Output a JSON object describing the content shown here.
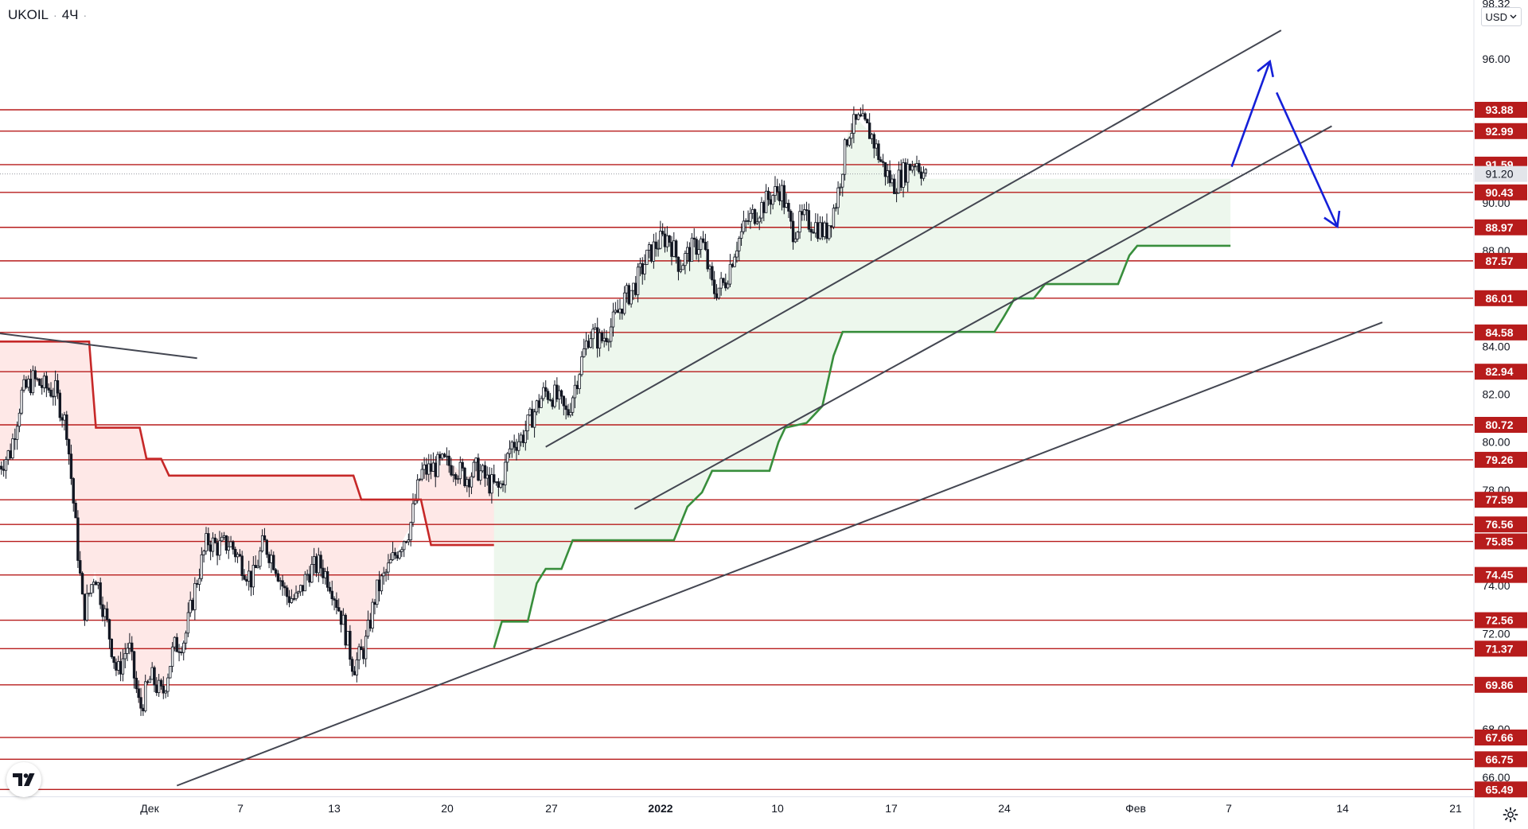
{
  "symbol": "UKOIL",
  "interval": "4Ч",
  "currency": "USD",
  "icons": {
    "currency_dropdown": "chevron-down-icon",
    "logo": "tradingview-logo-icon",
    "settings": "gear-icon"
  },
  "colors": {
    "level_line": "#b71c1c",
    "level_badge": "#b71c1c",
    "candle": "#131722",
    "channel": "#434651",
    "stop_red": "#c62828",
    "stop_red_fill": "rgba(244,67,54,0.12)",
    "stop_green": "#388e3c",
    "stop_green_fill": "rgba(76,175,80,0.10)",
    "arrow": "#1520d8",
    "current_price_badge": "#e3e5ea"
  },
  "chart_data": {
    "type": "candlestick",
    "symbol": "UKOIL",
    "timeframe": "4Ч",
    "y_axis": {
      "range": [
        65.2,
        98.4
      ],
      "ticks": [
        "66.00",
        "68.00",
        "72.00",
        "74.00",
        "78.00",
        "80.00",
        "82.00",
        "84.00",
        "88.00",
        "90.00",
        "96.00",
        "98.32"
      ]
    },
    "x_axis": {
      "ticks": [
        "Дек",
        "7",
        "13",
        "20",
        "27",
        "2022",
        "10",
        "17",
        "24",
        "Фев",
        "7",
        "14",
        "21"
      ],
      "bold_ticks": [
        "2022"
      ]
    },
    "horizontal_levels": [
      93.88,
      92.99,
      91.59,
      90.43,
      88.97,
      87.57,
      86.01,
      84.58,
      82.94,
      80.72,
      79.26,
      77.59,
      76.56,
      75.85,
      74.45,
      72.56,
      71.37,
      69.86,
      67.66,
      66.75,
      65.49
    ],
    "level_labels": [
      "93.88",
      "92.99",
      "91.59",
      "90.43",
      "88.97",
      "87.57",
      "86.01",
      "84.58",
      "82.94",
      "80.72",
      "79.26",
      "77.59",
      "76.56",
      "75.85",
      "74.45",
      "72.56",
      "71.37",
      "69.86",
      "67.66",
      "66.75",
      "65.49"
    ],
    "current_price": 91.2,
    "current_price_label": "91.20",
    "price_path": [
      {
        "d": 0,
        "p": 79.0
      },
      {
        "d": 1,
        "p": 79.6
      },
      {
        "d": 2,
        "p": 82.0
      },
      {
        "d": 3,
        "p": 82.6
      },
      {
        "d": 4,
        "p": 82.3
      },
      {
        "d": 5,
        "p": 82.1
      },
      {
        "d": 6,
        "p": 80.6
      },
      {
        "d": 7.5,
        "p": 72.8
      },
      {
        "d": 8.5,
        "p": 74.6
      },
      {
        "d": 9.5,
        "p": 72.6
      },
      {
        "d": 10.5,
        "p": 70.3
      },
      {
        "d": 11.5,
        "p": 71.6
      },
      {
        "d": 12.5,
        "p": 68.8
      },
      {
        "d": 13.5,
        "p": 70.2
      },
      {
        "d": 14.5,
        "p": 69.4
      },
      {
        "d": 15.5,
        "p": 71.4
      },
      {
        "d": 16.5,
        "p": 71.8
      },
      {
        "d": 17.5,
        "p": 74.1
      },
      {
        "d": 18.5,
        "p": 75.9
      },
      {
        "d": 19.5,
        "p": 75.6
      },
      {
        "d": 20.5,
        "p": 75.8
      },
      {
        "d": 21.5,
        "p": 75.0
      },
      {
        "d": 22.5,
        "p": 74.2
      },
      {
        "d": 23.5,
        "p": 75.8
      },
      {
        "d": 24.5,
        "p": 75.0
      },
      {
        "d": 25.5,
        "p": 73.6
      },
      {
        "d": 26.5,
        "p": 73.4
      },
      {
        "d": 27.5,
        "p": 74.6
      },
      {
        "d": 28.5,
        "p": 74.9
      },
      {
        "d": 29.5,
        "p": 74.1
      },
      {
        "d": 30.5,
        "p": 72.6
      },
      {
        "d": 31.5,
        "p": 70.6
      },
      {
        "d": 32.5,
        "p": 71.4
      },
      {
        "d": 33.5,
        "p": 73.7
      },
      {
        "d": 34.5,
        "p": 74.6
      },
      {
        "d": 35.5,
        "p": 75.6
      },
      {
        "d": 36.5,
        "p": 76.4
      },
      {
        "d": 37.5,
        "p": 78.7
      },
      {
        "d": 38.5,
        "p": 78.9
      },
      {
        "d": 39.5,
        "p": 79.1
      },
      {
        "d": 40.5,
        "p": 79.0
      },
      {
        "d": 41.5,
        "p": 78.5
      },
      {
        "d": 42.5,
        "p": 78.9
      },
      {
        "d": 43.5,
        "p": 78.3
      },
      {
        "d": 44.5,
        "p": 78.0
      },
      {
        "d": 45.5,
        "p": 79.9
      },
      {
        "d": 46.5,
        "p": 80.2
      },
      {
        "d": 47.5,
        "p": 81.2
      },
      {
        "d": 48.5,
        "p": 82.1
      },
      {
        "d": 49.5,
        "p": 81.9
      },
      {
        "d": 50.5,
        "p": 81.1
      },
      {
        "d": 51.5,
        "p": 82.9
      },
      {
        "d": 52.5,
        "p": 84.6
      },
      {
        "d": 53.5,
        "p": 84.2
      },
      {
        "d": 54.5,
        "p": 84.9
      },
      {
        "d": 55.5,
        "p": 85.9
      },
      {
        "d": 56.5,
        "p": 86.5
      },
      {
        "d": 57.5,
        "p": 87.6
      },
      {
        "d": 58.5,
        "p": 88.3
      },
      {
        "d": 59.5,
        "p": 88.6
      },
      {
        "d": 60.5,
        "p": 87.4
      },
      {
        "d": 61.5,
        "p": 88.0
      },
      {
        "d": 62.5,
        "p": 88.4
      },
      {
        "d": 63.5,
        "p": 86.3
      },
      {
        "d": 64.5,
        "p": 86.6
      },
      {
        "d": 65.5,
        "p": 88.2
      },
      {
        "d": 66.5,
        "p": 89.2
      },
      {
        "d": 67.5,
        "p": 89.7
      },
      {
        "d": 68.5,
        "p": 90.2
      },
      {
        "d": 69.5,
        "p": 90.6
      },
      {
        "d": 70.5,
        "p": 88.8
      },
      {
        "d": 71.5,
        "p": 89.3
      },
      {
        "d": 72.5,
        "p": 89.1
      },
      {
        "d": 73.5,
        "p": 88.7
      },
      {
        "d": 74.5,
        "p": 90.2
      },
      {
        "d": 75.5,
        "p": 93.0
      },
      {
        "d": 76.5,
        "p": 93.4
      },
      {
        "d": 77.5,
        "p": 92.9
      },
      {
        "d": 78.5,
        "p": 91.6
      },
      {
        "d": 79.5,
        "p": 90.7
      },
      {
        "d": 80.5,
        "p": 91.3
      },
      {
        "d": 81.5,
        "p": 91.8
      },
      {
        "d": 82.5,
        "p": 91.0
      }
    ],
    "volatility_stop_red": [
      {
        "d": 0,
        "p": 84.2
      },
      {
        "d": 8,
        "p": 84.2
      },
      {
        "d": 8.6,
        "p": 80.6
      },
      {
        "d": 12.5,
        "p": 80.6
      },
      {
        "d": 13.1,
        "p": 79.3
      },
      {
        "d": 14.4,
        "p": 79.3
      },
      {
        "d": 15.1,
        "p": 78.6
      },
      {
        "d": 31.5,
        "p": 78.6
      },
      {
        "d": 32.2,
        "p": 77.6
      },
      {
        "d": 37.5,
        "p": 77.6
      },
      {
        "d": 38.4,
        "p": 75.7
      },
      {
        "d": 44,
        "p": 75.7
      }
    ],
    "volatility_stop_green": [
      {
        "d": 44,
        "p": 71.4
      },
      {
        "d": 44.7,
        "p": 72.5
      },
      {
        "d": 47,
        "p": 72.5
      },
      {
        "d": 47.8,
        "p": 74.1
      },
      {
        "d": 48.6,
        "p": 74.7
      },
      {
        "d": 50,
        "p": 74.7
      },
      {
        "d": 51,
        "p": 75.9
      },
      {
        "d": 60,
        "p": 75.9
      },
      {
        "d": 61.2,
        "p": 77.3
      },
      {
        "d": 62.5,
        "p": 77.9
      },
      {
        "d": 63.4,
        "p": 78.8
      },
      {
        "d": 68.5,
        "p": 78.8
      },
      {
        "d": 69.3,
        "p": 80.0
      },
      {
        "d": 69.9,
        "p": 80.6
      },
      {
        "d": 71.8,
        "p": 80.8
      },
      {
        "d": 73.2,
        "p": 81.5
      },
      {
        "d": 74.2,
        "p": 83.6
      },
      {
        "d": 75.0,
        "p": 84.6
      },
      {
        "d": 88.5,
        "p": 84.6
      },
      {
        "d": 89.3,
        "p": 85.2
      },
      {
        "d": 90.3,
        "p": 86.0
      },
      {
        "d": 92,
        "p": 86.0
      },
      {
        "d": 93,
        "p": 86.6
      },
      {
        "d": 99.5,
        "p": 86.6
      },
      {
        "d": 100.5,
        "p": 87.8
      },
      {
        "d": 101.2,
        "p": 88.2
      },
      {
        "d": 109.5,
        "p": 88.2
      }
    ],
    "trendlines": [
      {
        "name": "channel-upper",
        "points": [
          {
            "d": 48.6,
            "p": 79.8
          },
          {
            "d": 114,
            "p": 97.2
          }
        ]
      },
      {
        "name": "channel-lower",
        "points": [
          {
            "d": 56.5,
            "p": 77.2
          },
          {
            "d": 118.5,
            "p": 93.2
          }
        ]
      },
      {
        "name": "long-support",
        "points": [
          {
            "d": 15.8,
            "p": 65.65
          },
          {
            "d": 123,
            "p": 85.0
          }
        ]
      },
      {
        "name": "falling-resistance",
        "points": [
          {
            "d": -1,
            "p": 84.6
          },
          {
            "d": 17.6,
            "p": 83.5
          }
        ]
      }
    ],
    "projection_arrows": [
      {
        "points": [
          {
            "d": 109.6,
            "p": 91.5
          },
          {
            "d": 113,
            "p": 95.9
          }
        ]
      },
      {
        "points": [
          {
            "d": 113.6,
            "p": 94.6
          },
          {
            "d": 119,
            "p": 89.0
          }
        ]
      }
    ]
  }
}
